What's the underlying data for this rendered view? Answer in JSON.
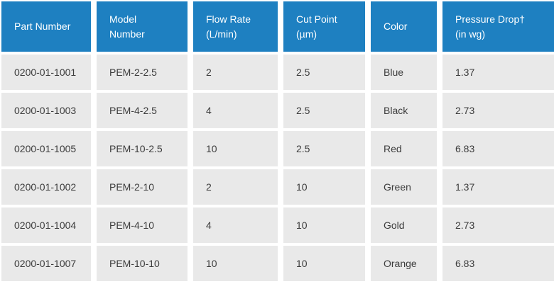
{
  "table": {
    "columns": [
      {
        "id": "part-number",
        "label": "Part Number"
      },
      {
        "id": "model-number",
        "label": "Model\nNumber"
      },
      {
        "id": "flow-rate",
        "label": "Flow Rate\n(L/min)"
      },
      {
        "id": "cut-point",
        "label": "Cut Point\n(µm)"
      },
      {
        "id": "color",
        "label": "Color"
      },
      {
        "id": "pressure-drop",
        "label": "Pressure Drop†\n(in wg)"
      }
    ],
    "rows": [
      {
        "part_number": "0200-01-1001",
        "model_number": "PEM-2-2.5",
        "flow_rate": "2",
        "cut_point": "2.5",
        "color": "Blue",
        "pressure_drop": "1.37"
      },
      {
        "part_number": "0200-01-1003",
        "model_number": "PEM-4-2.5",
        "flow_rate": "4",
        "cut_point": "2.5",
        "color": "Black",
        "pressure_drop": "2.73"
      },
      {
        "part_number": "0200-01-1005",
        "model_number": "PEM-10-2.5",
        "flow_rate": "10",
        "cut_point": "2.5",
        "color": "Red",
        "pressure_drop": "6.83"
      },
      {
        "part_number": "0200-01-1002",
        "model_number": "PEM-2-10",
        "flow_rate": "2",
        "cut_point": "10",
        "color": "Green",
        "pressure_drop": "1.37"
      },
      {
        "part_number": "0200-01-1004",
        "model_number": "PEM-4-10",
        "flow_rate": "4",
        "cut_point": "10",
        "color": "Gold",
        "pressure_drop": "2.73"
      },
      {
        "part_number": "0200-01-1007",
        "model_number": "PEM-10-10",
        "flow_rate": "10",
        "cut_point": "10",
        "color": "Orange",
        "pressure_drop": "6.83"
      }
    ]
  },
  "colors": {
    "header_bg": "#1e80c1",
    "header_text": "#ffffff",
    "row_bg": "#e9e9e9",
    "cell_text": "#3c3c3c",
    "gap": "#ffffff"
  }
}
